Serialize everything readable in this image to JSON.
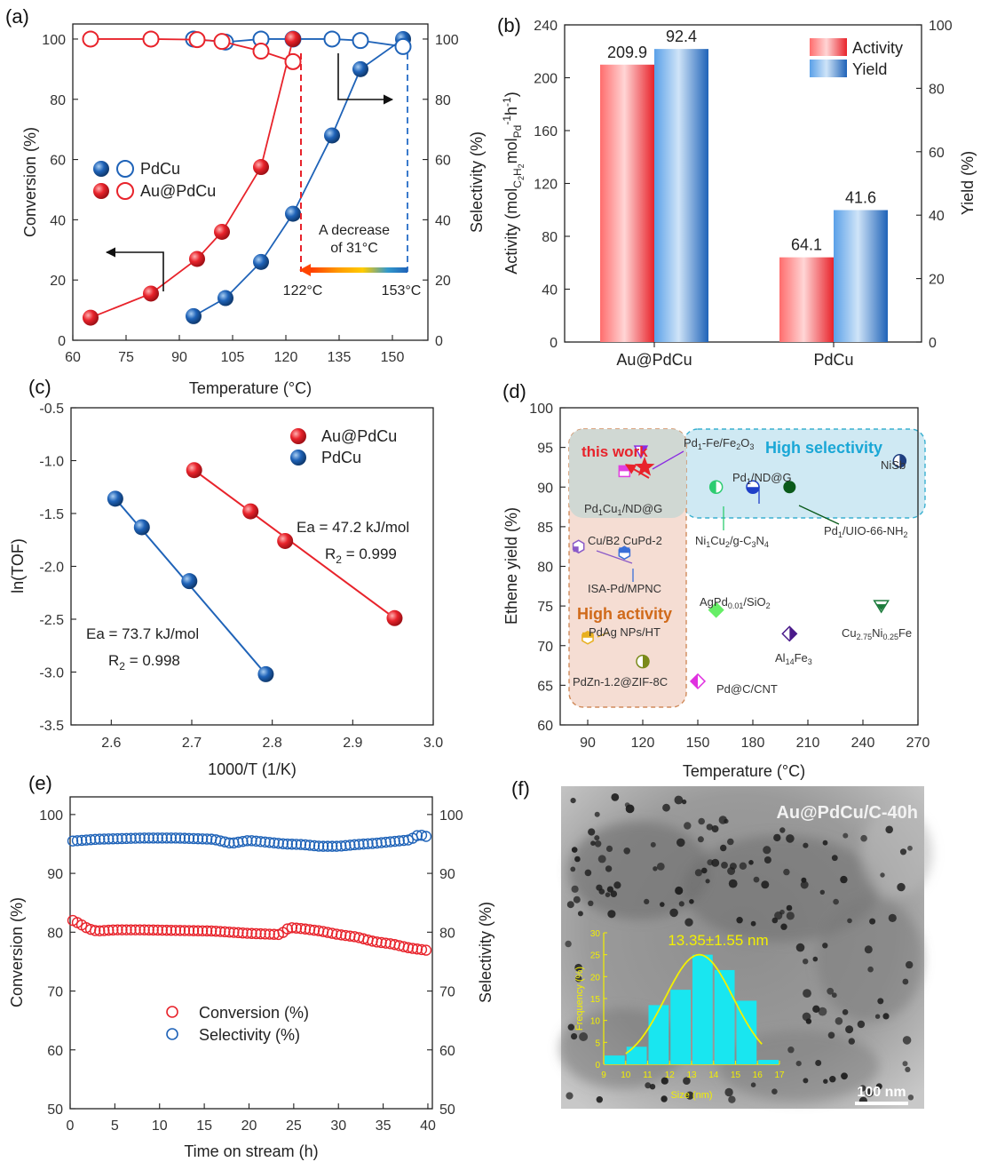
{
  "colors": {
    "red": "#e8232b",
    "blue": "#1f63b8",
    "axis": "#222222",
    "highlight_sel": "#bfe3ef",
    "highlight_act": "#f3d9cc",
    "arrow_gradient": [
      "#ff3300",
      "#ff9900",
      "#ffcc00",
      "#3399cc",
      "#1f63b8"
    ],
    "hist_bar": "#19e6f0",
    "hist_fit": "#f3f000"
  },
  "panels": [
    {
      "id": "a",
      "tag": "(a)",
      "type": "line",
      "xlabel": "Temperature (°C)",
      "ylabel": "Conversion (%)",
      "y2label": "Selectivity (%)",
      "xlim": [
        60,
        160
      ],
      "ylim": [
        0,
        105
      ],
      "y2lim": [
        0,
        105
      ],
      "xticks": [
        60,
        75,
        90,
        105,
        120,
        135,
        150
      ],
      "yticks": [
        0,
        20,
        40,
        60,
        80,
        100
      ],
      "y2ticks": [
        0,
        20,
        40,
        60,
        80,
        100
      ],
      "legend": [
        {
          "label": "PdCu",
          "color": "#1f63b8"
        },
        {
          "label": "Au@PdCu",
          "color": "#e8232b"
        }
      ],
      "series": [
        {
          "name": "PdCu",
          "kind": "conversion",
          "color": "#1f63b8",
          "x": [
            94,
            103,
            113,
            122,
            133,
            141,
            153
          ],
          "y": [
            8,
            14,
            26,
            42,
            68,
            90,
            100
          ]
        },
        {
          "name": "PdCu",
          "kind": "selectivity",
          "color": "#1f63b8",
          "x": [
            94,
            103,
            113,
            122,
            133,
            141,
            153
          ],
          "y": [
            100,
            99,
            100,
            100,
            100,
            99.5,
            97.5
          ]
        },
        {
          "name": "Au@PdCu",
          "kind": "conversion",
          "color": "#e8232b",
          "x": [
            65,
            82,
            95,
            102,
            113,
            122
          ],
          "y": [
            7.5,
            15.5,
            27,
            36,
            57.5,
            100
          ]
        },
        {
          "name": "Au@PdCu",
          "kind": "selectivity",
          "color": "#e8232b",
          "x": [
            65,
            82,
            95,
            102,
            113,
            122
          ],
          "y": [
            100,
            100,
            99.8,
            99.2,
            96,
            92.5
          ]
        }
      ],
      "annotations": {
        "decrease": "A decrease",
        "decrease2": "of 31°C",
        "t1": "122°C",
        "t2": "153°C"
      }
    },
    {
      "id": "b",
      "tag": "(b)",
      "type": "bar",
      "categories": [
        "Au@PdCu",
        "PdCu"
      ],
      "series": [
        {
          "name": "Activity",
          "color": "#e8232b",
          "values": [
            209.9,
            64.1
          ],
          "labels": [
            "209.9",
            "64.1"
          ]
        },
        {
          "name": "Yield",
          "color": "#1f63b8",
          "values": [
            92.4,
            41.6
          ],
          "labels": [
            "92.4",
            "41.6"
          ]
        }
      ],
      "ylabel": "Activity (mol",
      "ylabel_sub1": "C",
      "ylabel_sub2": "2",
      "ylabel_h": "H",
      "ylabel_mol": "mol",
      "ylabel_pd": "Pd",
      "ylabel_h1": "h",
      "ylabel_minus1": "-1",
      "ylabel_sup": "-1",
      "ylabel_end": ")",
      "y2label": "Yield (%)",
      "ylim": [
        0,
        240
      ],
      "y2lim": [
        0,
        100
      ],
      "yticks": [
        0,
        40,
        80,
        120,
        160,
        200,
        240
      ],
      "y2ticks": [
        0,
        20,
        40,
        60,
        80,
        100
      ],
      "legend_position": "top-right"
    },
    {
      "id": "c",
      "tag": "(c)",
      "type": "scatter",
      "xlabel": "1000/T (1/K)",
      "ylabel": "ln(TOF)",
      "xlim": [
        2.55,
        3.0
      ],
      "ylim": [
        -3.5,
        -0.5
      ],
      "xticks": [
        "2.6",
        "2.7",
        "2.8",
        "2.9",
        "3.0"
      ],
      "yticks": [
        "-0.5",
        "-1.0",
        "-1.5",
        "-2.0",
        "-2.5",
        "-3.0",
        "-3.5"
      ],
      "legend": [
        {
          "label": "Au@PdCu",
          "color": "#e8232b"
        },
        {
          "label": "PdCu",
          "color": "#1f63b8"
        }
      ],
      "series": [
        {
          "name": "Au@PdCu",
          "color": "#e8232b",
          "x": [
            2.703,
            2.773,
            2.816,
            2.952
          ],
          "y": [
            -1.09,
            -1.48,
            -1.76,
            -2.49
          ],
          "fit": [
            [
              2.703,
              -1.09
            ],
            [
              2.952,
              -2.49
            ]
          ]
        },
        {
          "name": "PdCu",
          "color": "#1f63b8",
          "x": [
            2.605,
            2.638,
            2.697,
            2.792
          ],
          "y": [
            -1.36,
            -1.63,
            -2.14,
            -3.02
          ],
          "fit": [
            [
              2.605,
              -1.36
            ],
            [
              2.792,
              -3.02
            ]
          ]
        }
      ],
      "annotations": {
        "ea1": "Ea = 47.2 kJ/mol",
        "r1": "R",
        "r1sub": "2",
        "r1val": " = 0.999",
        "ea2": "Ea = 73.7 kJ/mol",
        "r2": "R",
        "r2sub": "2",
        "r2val": " = 0.998"
      }
    },
    {
      "id": "d",
      "tag": "(d)",
      "type": "scatter",
      "xlabel": "Temperature (°C)",
      "ylabel": "Ethene yield (%)",
      "xlim": [
        75,
        270
      ],
      "ylim": [
        60,
        100
      ],
      "xticks": [
        90,
        120,
        150,
        180,
        210,
        240,
        270
      ],
      "yticks": [
        60,
        65,
        70,
        75,
        80,
        85,
        90,
        95,
        100
      ],
      "regions": {
        "selectivity": "High selectivity",
        "activity": "High activity",
        "work": "this work"
      },
      "points": [
        {
          "x": 121,
          "y": 92.5,
          "label": "",
          "color": "#e8232b",
          "shape": "star"
        },
        {
          "x": 119,
          "y": 94.5,
          "label": "Pd",
          "color": "#8a2be2",
          "shape": "tri"
        },
        {
          "x": 110,
          "y": 92,
          "label": "Pd",
          "color": "#e040e0",
          "shape": "sq"
        },
        {
          "x": 160,
          "y": 90,
          "label": "Ni",
          "color": "#2ecc71",
          "shape": "halfcircle"
        },
        {
          "x": 180,
          "y": 90,
          "label": "Pd",
          "color": "#1f3fc8",
          "shape": "halfcircle2"
        },
        {
          "x": 200,
          "y": 90,
          "label": "Pd",
          "color": "#0a5a1a",
          "shape": "circle"
        },
        {
          "x": 260,
          "y": 93.3,
          "label": "NiSb",
          "color": "#1f3f80",
          "shape": "halfcircle3"
        },
        {
          "x": 85,
          "y": 82.5,
          "label": "Cu/B2 CuPd-2",
          "color": "#8a5ac8",
          "shape": "hex"
        },
        {
          "x": 110,
          "y": 81.7,
          "label": "ISA-Pd/MPNC",
          "color": "#3a6fd8",
          "shape": "hex2"
        },
        {
          "x": 160,
          "y": 74.5,
          "label": "AgPd",
          "color": "#66ee66",
          "shape": "diamond"
        },
        {
          "x": 90,
          "y": 71,
          "label": "PdAg NPs/HT",
          "color": "#e8b020",
          "shape": "hex3"
        },
        {
          "x": 120,
          "y": 68,
          "label": "PdZn-1.2@ZIF-8C",
          "color": "#7a8a1a",
          "shape": "halfcircle4"
        },
        {
          "x": 150,
          "y": 65.5,
          "label": "Pd@C/CNT",
          "color": "#e030e0",
          "shape": "diamond2"
        },
        {
          "x": 200,
          "y": 71.5,
          "label": "Al",
          "color": "#4a1a8a",
          "shape": "diamond3"
        },
        {
          "x": 250,
          "y": 75,
          "label": "Cu",
          "color": "#1a7a3a",
          "shape": "tri2"
        }
      ],
      "labels": {
        "pd1fe": "Pd",
        "pd1fe_s": "1",
        "pd1fe_r": "-Fe/Fe",
        "pd1fe_s2": "2",
        "pd1fe_r2": "O",
        "pd1fe_s3": "3",
        "pd1cu": "Pd",
        "pd1cu_s": "1",
        "pd1cu_r": "Cu",
        "pd1cu_s2": "1",
        "pd1cu_r2": "/ND@G",
        "ni1": "Ni",
        "ni1_s": "1",
        "ni1_r": "Cu",
        "ni1_s2": "2",
        "ni1_r2": "/g-C",
        "ni1_s3": "3",
        "ni1_r3": "N",
        "ni1_s4": "4",
        "pd1nd": "Pd",
        "pd1nd_s": "1",
        "pd1nd_r": "/ND@G",
        "pd1uio": "Pd",
        "pd1uio_s": "1",
        "pd1uio_r": "/UIO-66-NH",
        "pd1uio_s2": "2",
        "nisb": "NiSb",
        "cub2": "Cu/B2 CuPd-2",
        "isa": "ISA-Pd/MPNC",
        "agpd": "AgPd",
        "agpd_s": "0.01",
        "agpd_r": "/SiO",
        "agpd_s2": "2",
        "pdag": "PdAg NPs/HT",
        "pdzn": "PdZn-1.2@ZIF-8C",
        "pdc": "Pd@C/CNT",
        "alfe": "Al",
        "alfe_s": "14",
        "alfe_r": "Fe",
        "alfe_s2": "3",
        "cuni": "Cu",
        "cuni_s": "2.75",
        "cuni_r": "Ni",
        "cuni_s2": "0.25",
        "cuni_r2": "Fe"
      }
    },
    {
      "id": "e",
      "tag": "(e)",
      "type": "scatter",
      "xlabel": "Time on stream (h)",
      "ylabel": "Conversion (%)",
      "y2label": "Selectivity (%)",
      "xlim": [
        0,
        40.5
      ],
      "ylim": [
        50,
        103
      ],
      "y2lim": [
        50,
        103
      ],
      "xticks": [
        0,
        5,
        10,
        15,
        20,
        25,
        30,
        35,
        40
      ],
      "yticks": [
        50,
        60,
        70,
        80,
        90,
        100
      ],
      "y2ticks": [
        50,
        60,
        70,
        80,
        90,
        100
      ],
      "legend": [
        {
          "label": "Conversion (%)",
          "color": "#e8232b"
        },
        {
          "label": "Selectivity (%)",
          "color": "#1f63b8"
        }
      ],
      "series": [
        {
          "name": "Conversion (%)",
          "color": "#e8232b",
          "anchors": [
            [
              0.3,
              82.0
            ],
            [
              1.0,
              81.5
            ],
            [
              2.0,
              80.6
            ],
            [
              3.0,
              80.2
            ],
            [
              5.0,
              80.4
            ],
            [
              8.0,
              80.4
            ],
            [
              12.0,
              80.3
            ],
            [
              16.0,
              80.2
            ],
            [
              20.0,
              79.8
            ],
            [
              23.5,
              79.6
            ],
            [
              24.5,
              80.8
            ],
            [
              26.0,
              80.6
            ],
            [
              28.0,
              80.2
            ],
            [
              30.0,
              79.6
            ],
            [
              32.0,
              79.2
            ],
            [
              34.0,
              78.4
            ],
            [
              36.0,
              78.0
            ],
            [
              38.0,
              77.3
            ],
            [
              40.0,
              76.9
            ]
          ],
          "step": 0.5
        },
        {
          "name": "Selectivity (%)",
          "color": "#1f63b8",
          "anchors": [
            [
              0.3,
              95.5
            ],
            [
              3.0,
              95.8
            ],
            [
              8.0,
              96.0
            ],
            [
              12.0,
              96.0
            ],
            [
              16.0,
              95.8
            ],
            [
              18.0,
              95.1
            ],
            [
              20.0,
              95.6
            ],
            [
              22.0,
              95.3
            ],
            [
              24.0,
              95.0
            ],
            [
              26.0,
              94.9
            ],
            [
              28.0,
              94.6
            ],
            [
              30.0,
              94.6
            ],
            [
              32.0,
              94.9
            ],
            [
              34.0,
              95.1
            ],
            [
              36.0,
              95.4
            ],
            [
              38.0,
              95.7
            ],
            [
              39.0,
              96.6
            ],
            [
              40.0,
              96.2
            ]
          ],
          "step": 0.5
        }
      ]
    },
    {
      "id": "f",
      "tag": "(f)",
      "type": "bar",
      "image_label": "Au@PdCu/C-40h",
      "scale_bar": "100 nm",
      "hist": {
        "title": "13.35±1.55 nm",
        "xlabel": "Size (nm)",
        "ylabel": "Frequency (%)",
        "xlim": [
          9,
          17
        ],
        "ylim": [
          0,
          30
        ],
        "xticks": [
          9,
          10,
          11,
          12,
          13,
          14,
          15,
          16,
          17
        ],
        "yticks": [
          0,
          5,
          10,
          15,
          20,
          25,
          30
        ],
        "bins": [
          9.5,
          10.5,
          11.5,
          12.5,
          13.5,
          14.5,
          15.5,
          16.5
        ],
        "values": [
          2,
          4,
          13.5,
          17,
          25,
          21.5,
          14.5,
          1
        ]
      }
    }
  ]
}
